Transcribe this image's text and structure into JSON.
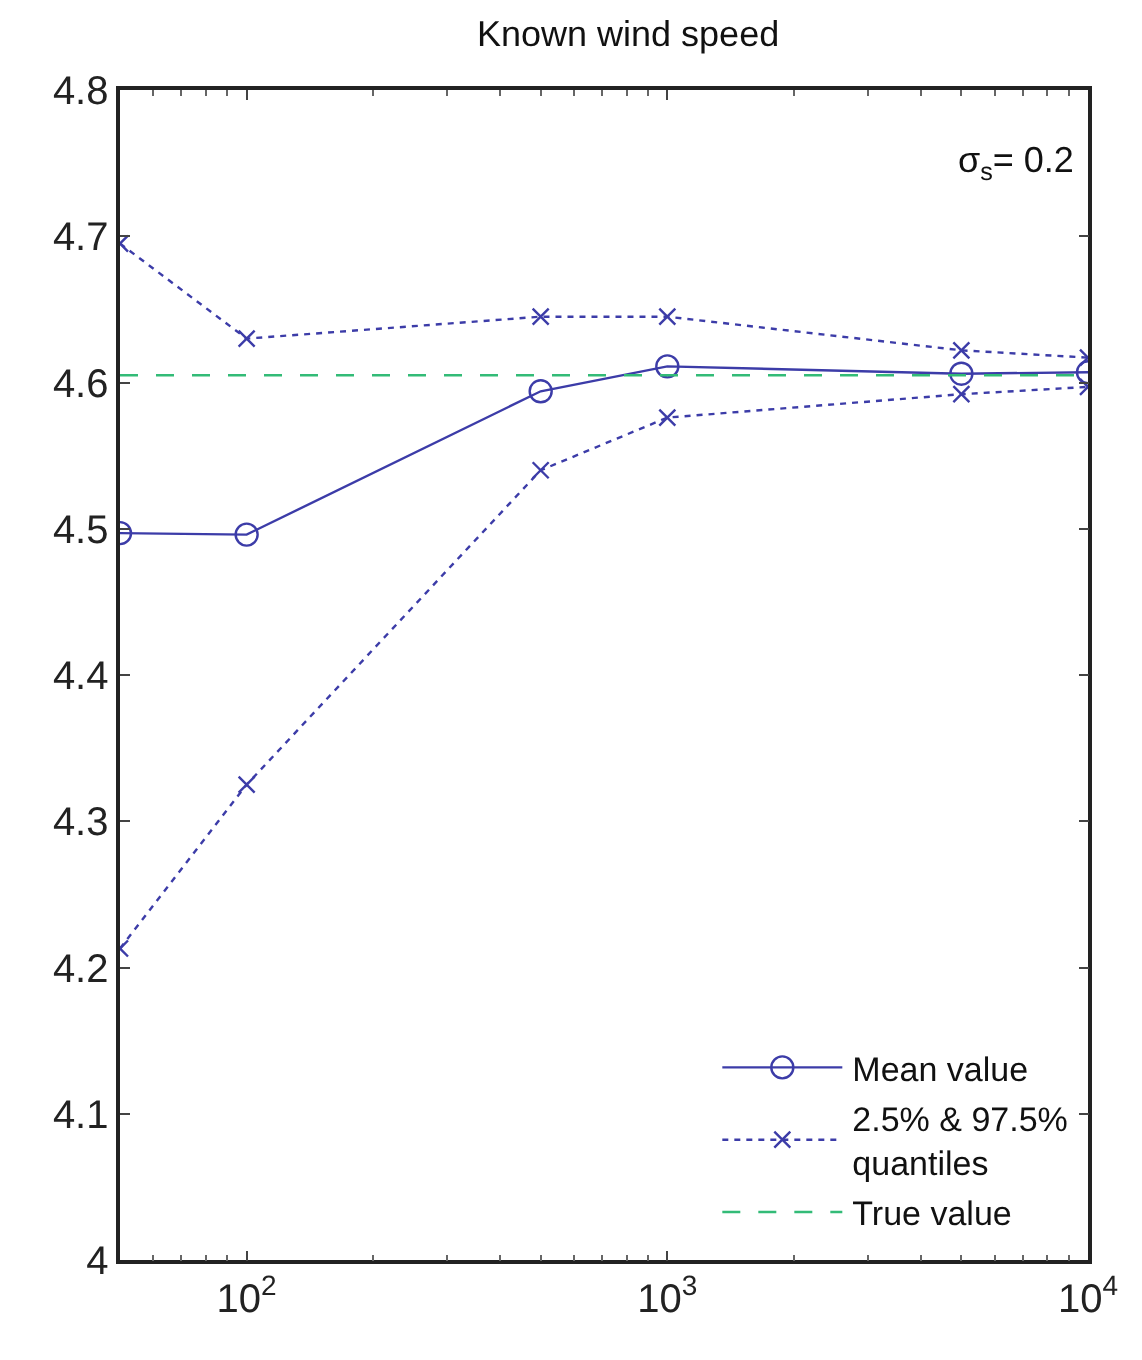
{
  "chart_data": {
    "type": "line",
    "title": "Known wind speed",
    "x": [
      50,
      100,
      500,
      1000,
      5000,
      10000
    ],
    "series": [
      {
        "name": "Mean value",
        "color": "#3c3ca8",
        "marker": "circle",
        "line_style": "solid",
        "values": [
          4.497,
          4.496,
          4.594,
          4.611,
          4.606,
          4.607
        ]
      },
      {
        "name": "2.5% & 97.5% quantiles",
        "color": "#3c3ca8",
        "marker": "cross",
        "line_style": "dotted",
        "values": [
          4.695,
          4.63,
          4.645,
          4.645,
          4.622,
          4.617
        ]
      },
      {
        "color": "#3c3ca8",
        "marker": "cross",
        "line_style": "dotted",
        "values": [
          4.213,
          4.325,
          4.54,
          4.576,
          4.592,
          4.597
        ]
      }
    ],
    "ref_lines": [
      {
        "axis": "y",
        "value": 4.605,
        "label": "True value",
        "color": "#33bb77",
        "line_style": "dashed"
      }
    ],
    "annotations": [
      "σ$_{s}$= 0.2"
    ],
    "log": "x",
    "xlim": [
      50,
      10000
    ],
    "xticks": [
      {
        "value": 100,
        "label": "10$^{2}$"
      },
      {
        "value": 1000,
        "label": "10$^{3}$"
      },
      {
        "value": 10000,
        "label": "10$^{4}$"
      }
    ],
    "ylim": [
      4,
      4.8
    ],
    "yticks": [
      4,
      4.1,
      4.2,
      4.3,
      4.4,
      4.5,
      4.6,
      4.7,
      4.8
    ],
    "grid": false,
    "legend": "bottom right"
  }
}
